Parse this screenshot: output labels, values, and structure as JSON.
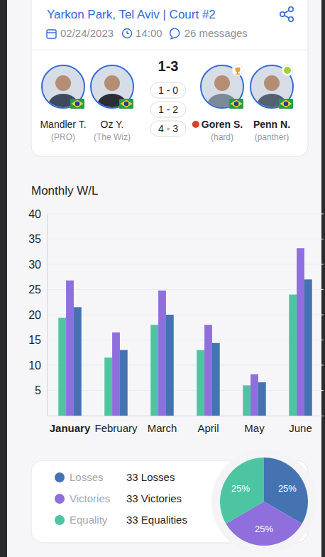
{
  "match": {
    "venue": "Yarkon Park, Tel Aviv | Court #2",
    "date": "02/24/2023",
    "time": "14:00",
    "messages": "26 messages",
    "score": "1-3",
    "sets": [
      "1 - 0",
      "1 - 2",
      "4 - 3"
    ],
    "team_a": [
      {
        "name": "Mandler T.",
        "nickname": "(PRO)"
      },
      {
        "name": "Oz Y.",
        "nickname": "(The Wiz)"
      }
    ],
    "team_b": [
      {
        "name": "Goren S.",
        "nickname": "(hard)"
      },
      {
        "name": "Penn N.",
        "nickname": "(panther)"
      }
    ]
  },
  "chart_data": [
    {
      "type": "bar",
      "title": "Monthly W/L",
      "categories": [
        "January",
        "February",
        "March",
        "April",
        "May",
        "June"
      ],
      "series": [
        {
          "name": "Equality",
          "color": "#4dc5a3",
          "values": [
            19.4,
            11.5,
            18,
            13,
            6,
            24
          ]
        },
        {
          "name": "Victories",
          "color": "#8e6fdc",
          "values": [
            26.8,
            16.5,
            24.8,
            18,
            8.2,
            33.2
          ]
        },
        {
          "name": "Losses",
          "color": "#4573b2",
          "values": [
            21.5,
            13,
            20,
            14.4,
            6.6,
            27
          ]
        }
      ],
      "ylim": [
        0,
        40
      ],
      "yticks": [
        5,
        10,
        15,
        20,
        25,
        30,
        35,
        40
      ],
      "grid": true,
      "legend": "bottom"
    },
    {
      "type": "pie",
      "values": [
        25,
        25,
        25
      ],
      "value_labels": [
        "25%",
        "25%",
        "25%"
      ],
      "colors": [
        "#4573b2",
        "#8e6fdc",
        "#4dc5a3"
      ],
      "data_labels": true
    }
  ],
  "summary": [
    "33 Losses",
    "33 Victories",
    "33 Equalities"
  ]
}
